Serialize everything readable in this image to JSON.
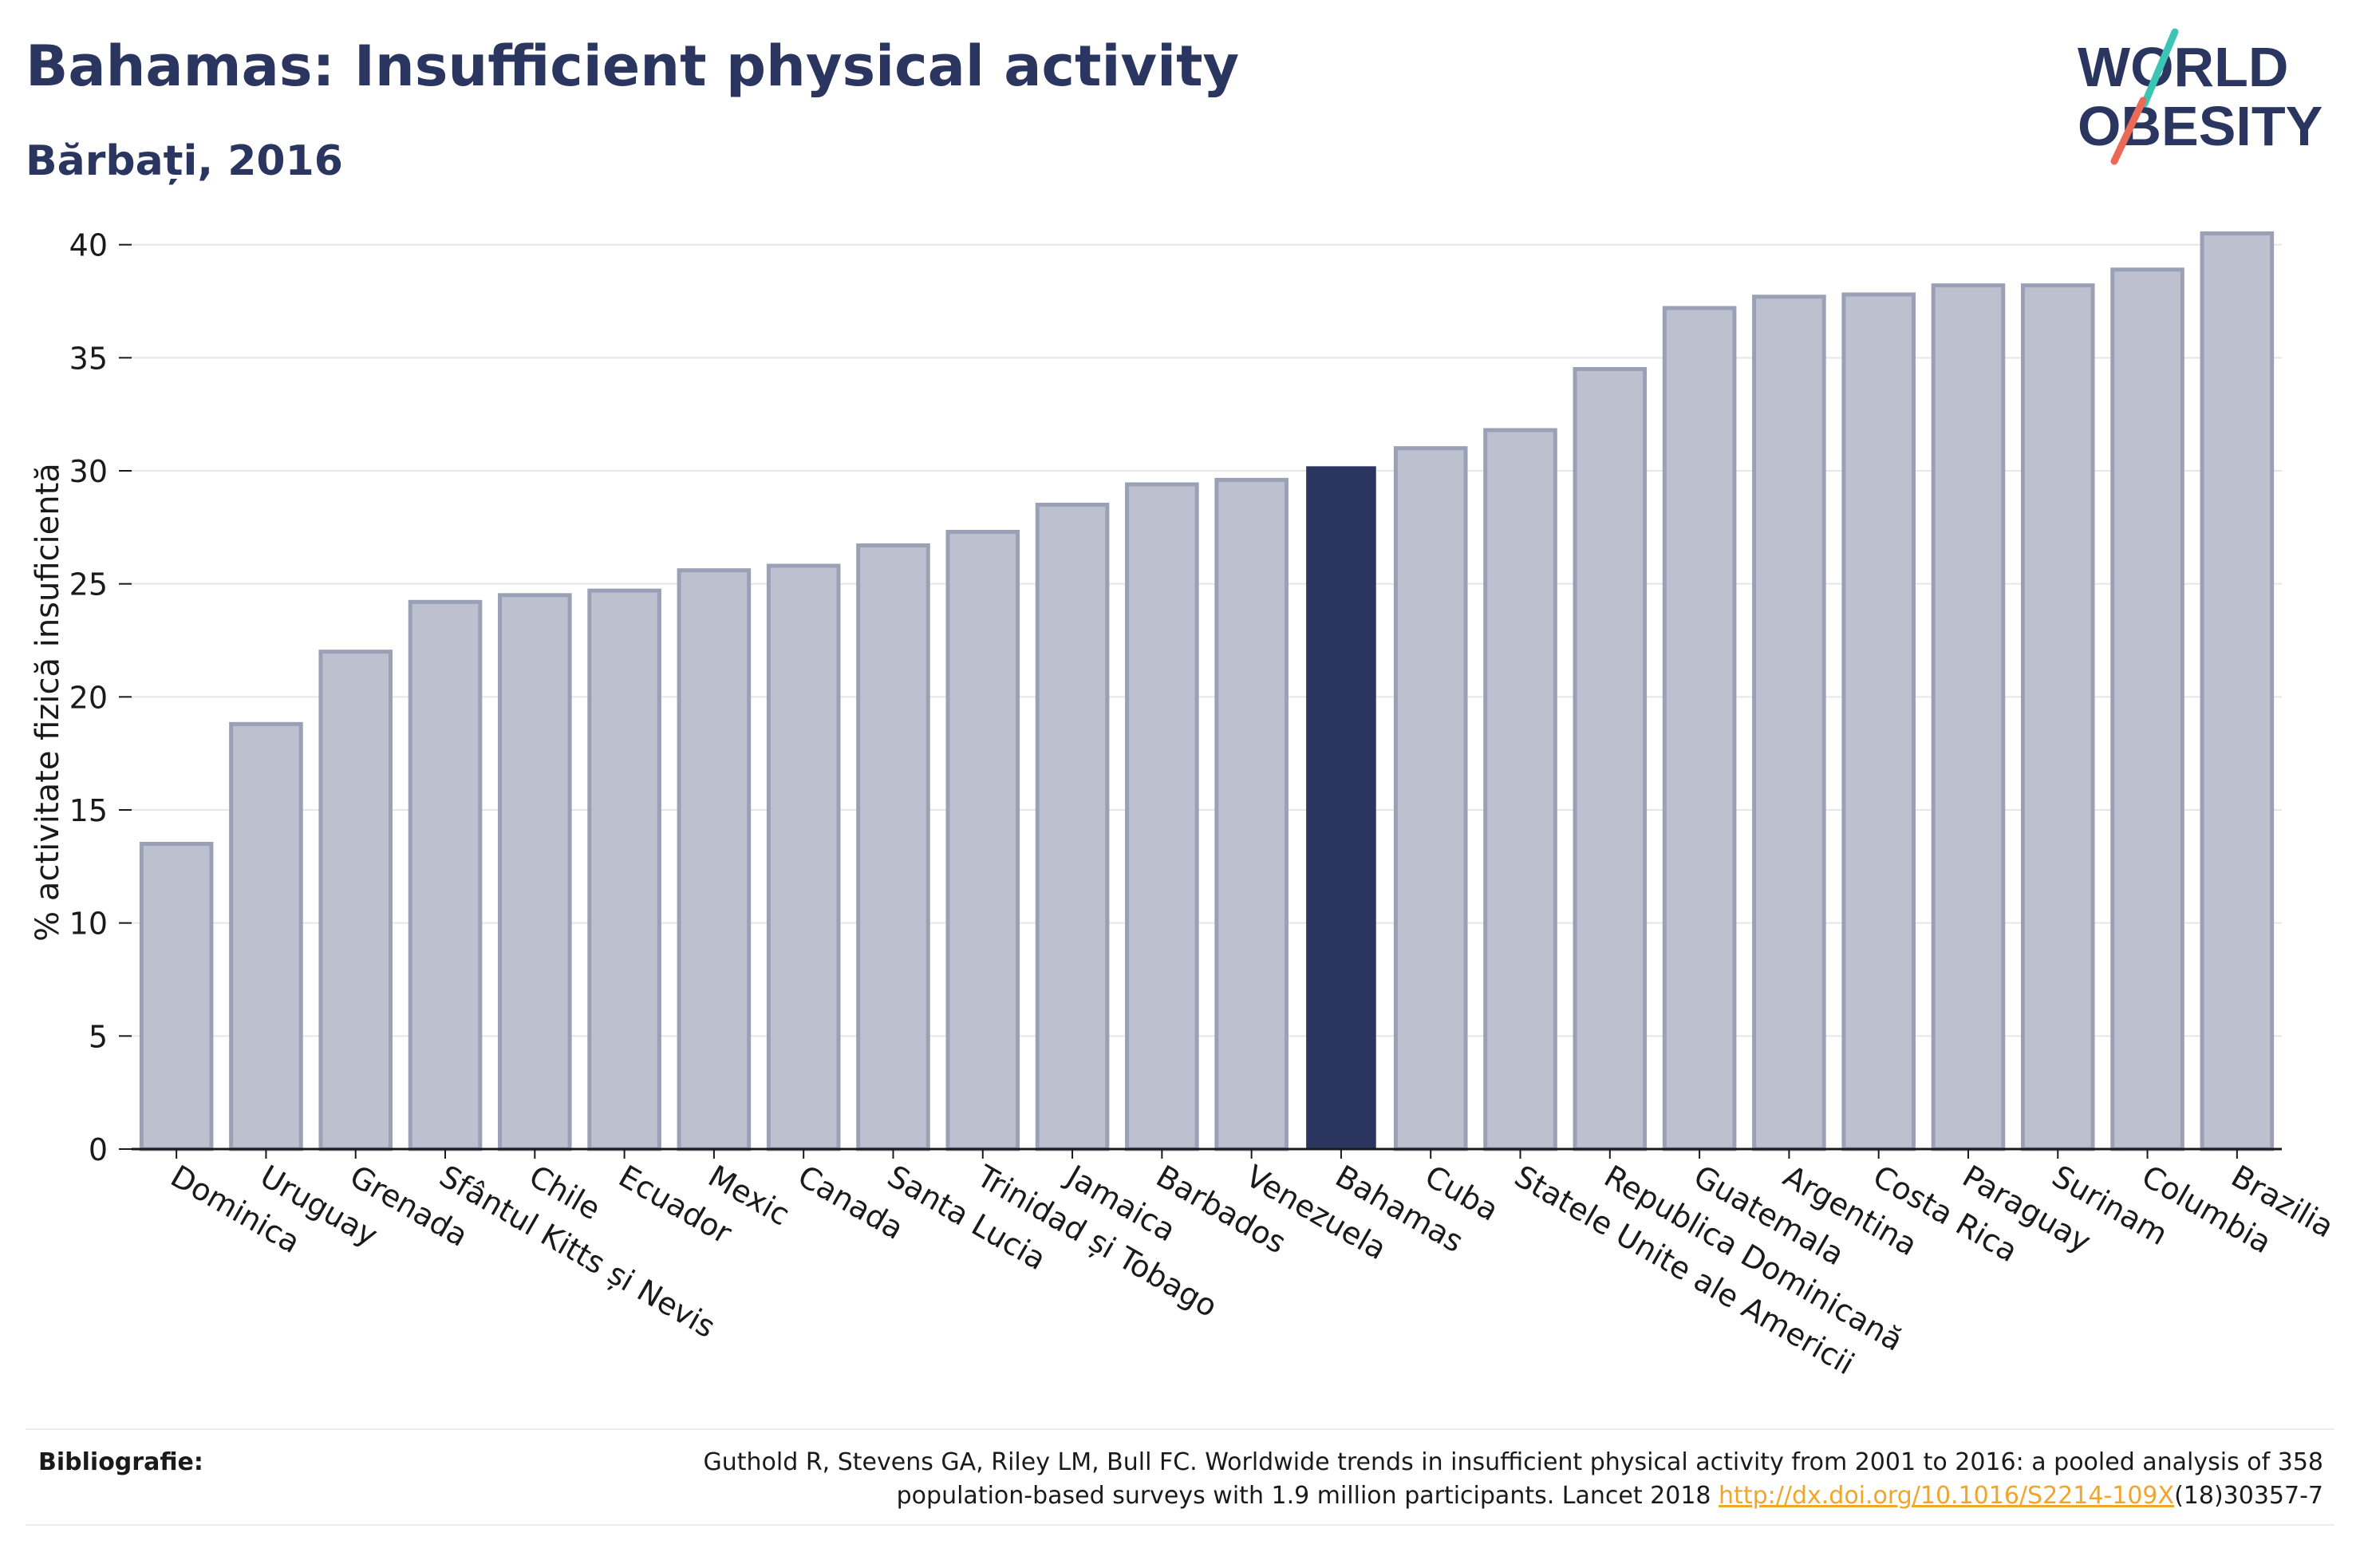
{
  "header": {
    "title": "Bahamas: Insufficient physical activity",
    "subtitle": "Bărbați, 2016"
  },
  "logo": {
    "line1": "WORLD",
    "line2": "OBESITY",
    "slash_colors": [
      "#3cc5b5",
      "#ea6a55"
    ]
  },
  "chart_data": {
    "type": "bar",
    "ylabel": "% activitate fizică insuficientă",
    "ylim": [
      0,
      42
    ],
    "yticks": [
      0,
      5,
      10,
      15,
      20,
      25,
      30,
      35,
      40
    ],
    "grid": true,
    "highlight": "Bahamas",
    "colors": {
      "bar": "#bdc1cf",
      "bar_border": "#9aa0b6",
      "highlight": "#2a3560"
    },
    "categories": [
      "Dominica",
      "Uruguay",
      "Grenada",
      "Sfântul Kitts și Nevis",
      "Chile",
      "Ecuador",
      "Mexic",
      "Canada",
      "Santa Lucia",
      "Trinidad și Tobago",
      "Jamaica",
      "Barbados",
      "Venezuela",
      "Bahamas",
      "Cuba",
      "Statele Unite ale Americii",
      "Republica Dominicană",
      "Guatemala",
      "Argentina",
      "Costa Rica",
      "Paraguay",
      "Surinam",
      "Columbia",
      "Brazilia"
    ],
    "values": [
      13.5,
      18.8,
      22.0,
      24.2,
      24.5,
      24.7,
      25.6,
      25.8,
      26.7,
      27.3,
      28.5,
      29.4,
      29.6,
      30.2,
      31.0,
      31.8,
      34.5,
      37.2,
      37.7,
      37.8,
      38.2,
      38.2,
      38.9,
      40.5
    ]
  },
  "footer": {
    "bib_label": "Bibliografie:",
    "bib_line1": "Guthold R, Stevens GA, Riley LM, Bull FC. Worldwide trends in insufficient physical activity from 2001 to 2016: a pooled analysis of 358",
    "bib_line2_pre": "population-based surveys with 1.9 million participants. Lancet 2018 ",
    "bib_link": "http://dx.doi.org/10.1016/S2214-109X",
    "bib_line2_post": "(18)30357-7"
  }
}
